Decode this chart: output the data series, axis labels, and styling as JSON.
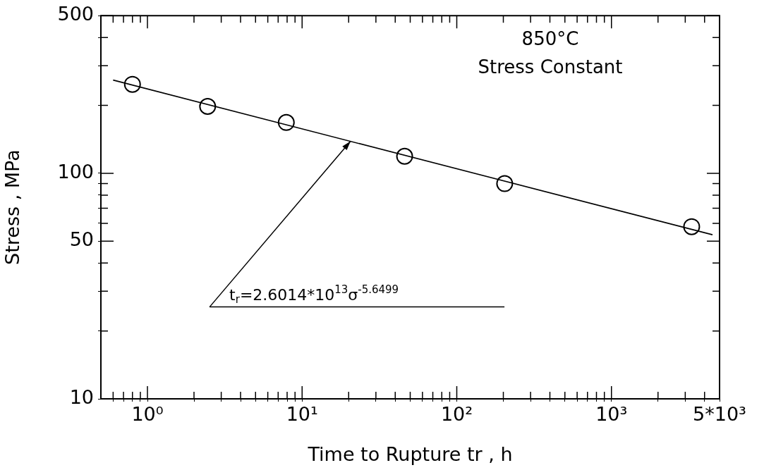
{
  "chart_data": {
    "type": "scatter",
    "xlabel": "Time to Rupture tr , h",
    "ylabel": "Stress , MPa",
    "log": "xy",
    "marker": "circle",
    "xlim": [
      0.5,
      5000
    ],
    "ylim": [
      10,
      500
    ],
    "xticks": [
      {
        "value": 0.6,
        "label": null
      },
      {
        "value": 0.7,
        "label": null
      },
      {
        "value": 0.8,
        "label": null
      },
      {
        "value": 0.9,
        "label": null
      },
      {
        "value": 1,
        "label": "10⁰"
      },
      {
        "value": 2,
        "label": null
      },
      {
        "value": 3,
        "label": null
      },
      {
        "value": 4,
        "label": null
      },
      {
        "value": 5,
        "label": null
      },
      {
        "value": 6,
        "label": null
      },
      {
        "value": 7,
        "label": null
      },
      {
        "value": 8,
        "label": null
      },
      {
        "value": 9,
        "label": null
      },
      {
        "value": 10,
        "label": "10¹"
      },
      {
        "value": 20,
        "label": null
      },
      {
        "value": 30,
        "label": null
      },
      {
        "value": 40,
        "label": null
      },
      {
        "value": 50,
        "label": null
      },
      {
        "value": 60,
        "label": null
      },
      {
        "value": 70,
        "label": null
      },
      {
        "value": 80,
        "label": null
      },
      {
        "value": 90,
        "label": null
      },
      {
        "value": 100,
        "label": "10²"
      },
      {
        "value": 200,
        "label": null
      },
      {
        "value": 300,
        "label": null
      },
      {
        "value": 400,
        "label": null
      },
      {
        "value": 500,
        "label": null
      },
      {
        "value": 600,
        "label": null
      },
      {
        "value": 700,
        "label": null
      },
      {
        "value": 800,
        "label": null
      },
      {
        "value": 900,
        "label": null
      },
      {
        "value": 1000,
        "label": "10³"
      },
      {
        "value": 2000,
        "label": null
      },
      {
        "value": 3000,
        "label": null
      },
      {
        "value": 4000,
        "label": null
      },
      {
        "value": 5000,
        "label": "5*10³"
      }
    ],
    "yticks": [
      10,
      {
        "value": 20,
        "label": null
      },
      {
        "value": 30,
        "label": null
      },
      {
        "value": 40,
        "label": null
      },
      50,
      {
        "value": 60,
        "label": null
      },
      {
        "value": 70,
        "label": null
      },
      {
        "value": 80,
        "label": null
      },
      {
        "value": 90,
        "label": null
      },
      100,
      {
        "value": 200,
        "label": null
      },
      {
        "value": 300,
        "label": null
      },
      {
        "value": 400,
        "label": null
      },
      500
    ],
    "annotations": [
      "850°C",
      "Stress Constant",
      {
        "text": "t$_{r}$=2.6014*10$^{13}$σ$^{-5.6499}$",
        "x": 20.6,
        "y": 139
      }
    ],
    "series": [
      {
        "color": "#000000",
        "x": [
          0.8,
          2.45,
          7.9,
          46,
          204,
          3300
        ],
        "values": [
          248,
          198,
          168,
          119,
          90,
          58
        ]
      },
      {
        "type": "line",
        "color": "#000000",
        "marker": "none",
        "x": [
          0.6,
          4500
        ],
        "values": [
          259,
          53.4
        ]
      }
    ]
  }
}
